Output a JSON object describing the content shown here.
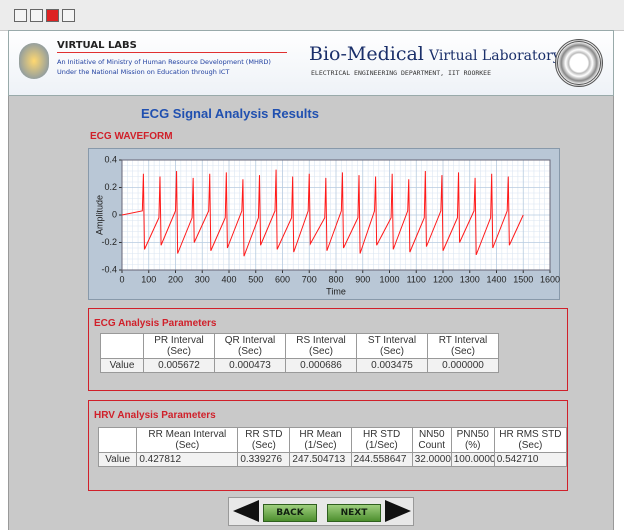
{
  "header": {
    "org": "VIRTUAL LABS",
    "line1": "An Initiative of Ministry of Human Resource Development (MHRD)",
    "line2": "Under the National Mission on Education through ICT",
    "lab_main": "Bio-Medical",
    "lab_rest": "Virtual Laboratory",
    "dept": "ELECTRICAL ENGINEERING DEPARTMENT, IIT ROORKEE"
  },
  "title": "ECG Signal Analysis Results",
  "chart_data": {
    "type": "line",
    "title": "ECG WAVEFORM",
    "xlabel": "Time",
    "ylabel": "Amplitude",
    "color": "#ff1a1a",
    "grid": true,
    "xlim": [
      0,
      1600
    ],
    "xticks": [
      0,
      100,
      200,
      300,
      400,
      500,
      600,
      700,
      800,
      900,
      1000,
      1100,
      1200,
      1300,
      1400,
      1500,
      1600
    ],
    "ylim": [
      -0.4,
      0.4
    ],
    "yticks": [
      -0.4,
      -0.2,
      0,
      0.2,
      0.4
    ],
    "x": [
      0,
      76,
      80,
      84,
      138,
      142,
      146,
      200,
      204,
      208,
      262,
      266,
      270,
      324,
      328,
      332,
      386,
      390,
      394,
      448,
      452,
      456,
      510,
      514,
      518,
      572,
      576,
      580,
      634,
      638,
      642,
      696,
      700,
      704,
      758,
      762,
      766,
      820,
      824,
      828,
      882,
      886,
      890,
      944,
      948,
      952,
      1006,
      1010,
      1014,
      1068,
      1072,
      1076,
      1130,
      1134,
      1138,
      1192,
      1196,
      1200,
      1254,
      1258,
      1262,
      1316,
      1320,
      1324,
      1378,
      1382,
      1386,
      1440,
      1444,
      1448,
      1500
    ],
    "values": [
      0,
      0.03,
      0.3,
      -0.25,
      -0.02,
      0.28,
      -0.22,
      0.03,
      0.32,
      -0.28,
      -0.02,
      0.27,
      -0.2,
      0.03,
      0.3,
      -0.26,
      -0.02,
      0.31,
      -0.24,
      0.03,
      0.26,
      -0.3,
      -0.02,
      0.29,
      -0.22,
      0.03,
      0.33,
      -0.25,
      -0.02,
      0.28,
      -0.27,
      0.03,
      0.3,
      -0.21,
      -0.02,
      0.27,
      -0.26,
      0.03,
      0.31,
      -0.24,
      -0.02,
      0.29,
      -0.28,
      0.03,
      0.28,
      -0.22,
      -0.02,
      0.3,
      -0.25,
      0.03,
      0.26,
      -0.27,
      -0.02,
      0.32,
      -0.23,
      0.03,
      0.29,
      -0.26,
      -0.02,
      0.31,
      -0.2,
      0.03,
      0.27,
      -0.29,
      -0.02,
      0.3,
      -0.24,
      0.03,
      0.28,
      -0.22,
      0
    ]
  },
  "ecg_parameters": {
    "title": "ECG Analysis Parameters",
    "columns": [
      {
        "name": "PR Interval",
        "unit": "(Sec)"
      },
      {
        "name": "QR Interval",
        "unit": "(Sec)"
      },
      {
        "name": "RS Interval",
        "unit": "(Sec)"
      },
      {
        "name": "ST Interval",
        "unit": "(Sec)"
      },
      {
        "name": "RT Interval",
        "unit": "(Sec)"
      }
    ],
    "row_label": "Value",
    "values": [
      "0.005672",
      "0.000473",
      "0.000686",
      "0.003475",
      "0.000000"
    ]
  },
  "hrv_parameters": {
    "title": "HRV Analysis Parameters",
    "columns": [
      {
        "name": "RR Mean Interval",
        "unit": "(Sec)"
      },
      {
        "name": "RR STD",
        "unit": "(Sec)"
      },
      {
        "name": "HR Mean",
        "unit": "(1/Sec)"
      },
      {
        "name": "HR STD",
        "unit": "(1/Sec)"
      },
      {
        "name": "NN50",
        "unit": "Count"
      },
      {
        "name": "PNN50",
        "unit": "(%)"
      },
      {
        "name": "HR RMS STD",
        "unit": "(Sec)"
      }
    ],
    "row_label": "Value",
    "values": [
      "0.427812",
      "0.339276",
      "247.504713",
      "244.558647",
      "32.000000",
      "100.000000",
      "0.542710"
    ]
  },
  "buttons": {
    "back": "BACK",
    "next": "NEXT"
  }
}
